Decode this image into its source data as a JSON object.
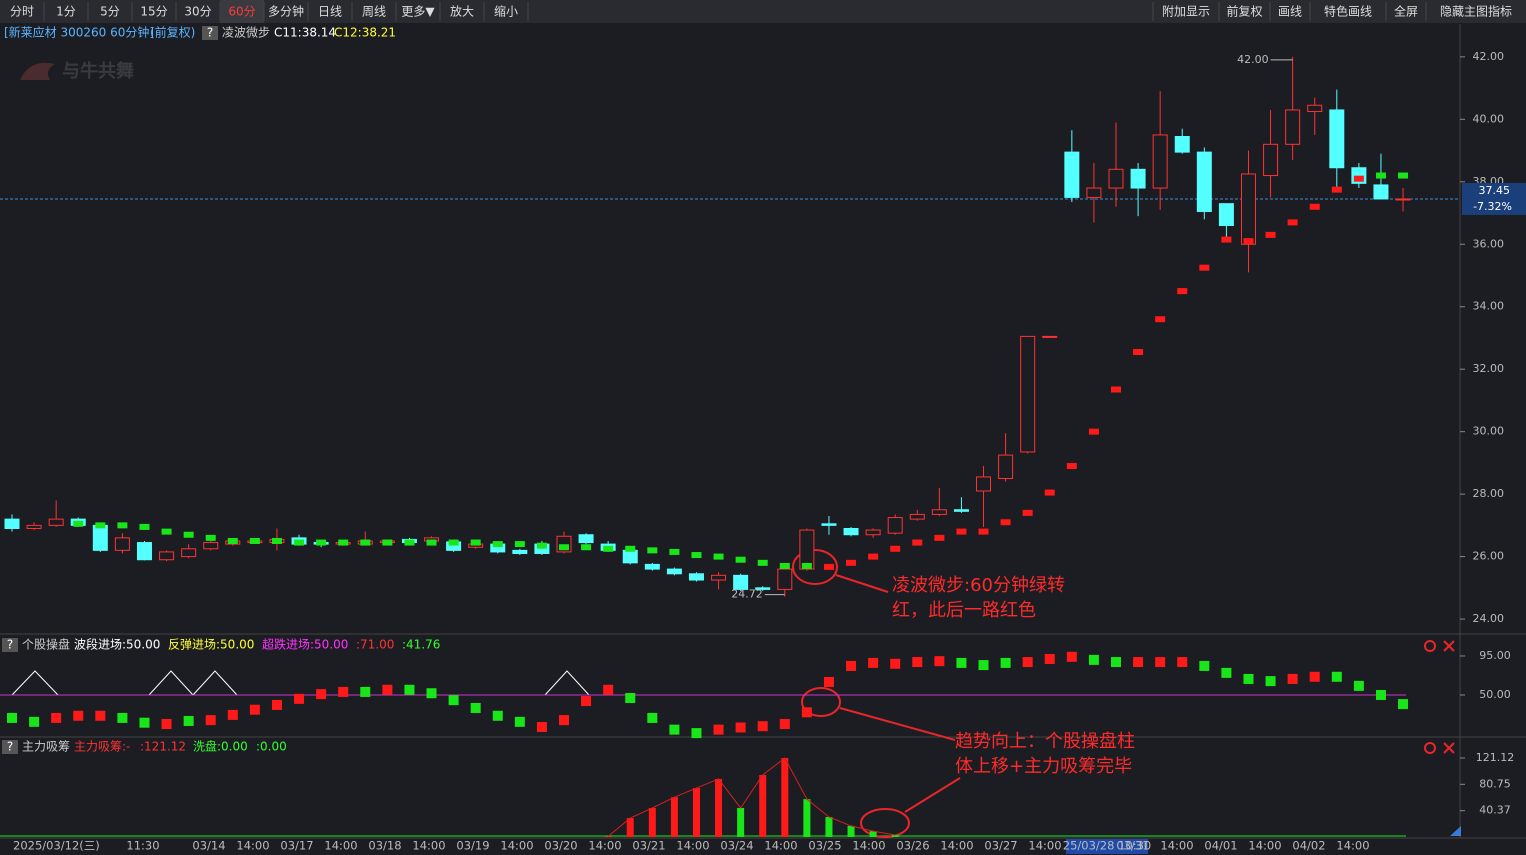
{
  "toolbar": {
    "left": [
      "分时",
      "1分",
      "5分",
      "15分",
      "30分",
      "60分",
      "多分钟",
      "日线",
      "周线",
      "更多▼",
      "放大",
      "缩小"
    ],
    "active": 5,
    "right": [
      "附加显示",
      "前复权",
      "画线",
      "特色画线",
      "全屏",
      "隐藏主图指标"
    ]
  },
  "header": {
    "symbol": "[新莱应材 300260 60分钟]",
    "adjust": "(前复权)",
    "help": "?",
    "indicator": "凌波微步",
    "c1": "C11:38.14",
    "c2": "C12:38.21"
  },
  "logo": "与牛共舞",
  "chart_data": [
    {
      "type": "candlestick",
      "open": [
        27.2,
        26.9,
        27.0,
        27.2,
        27.0,
        26.2,
        26.45,
        25.9,
        26.0,
        26.25,
        26.4,
        26.45,
        26.45,
        26.6,
        26.45,
        26.4,
        26.4,
        26.45,
        26.55,
        26.5,
        26.47,
        26.3,
        26.4,
        26.2,
        26.4,
        26.15,
        26.7,
        26.4,
        26.2,
        25.75,
        25.6,
        25.45,
        25.25,
        25.4,
        25.0,
        24.95,
        25.6,
        27.05,
        26.9,
        26.7,
        26.75,
        27.2,
        27.35,
        27.5,
        28.1,
        28.5,
        29.35,
        33.05,
        38.95,
        37.5,
        37.8,
        38.4,
        37.8,
        39.45,
        38.95,
        37.3,
        36.0,
        38.2,
        39.2,
        40.25,
        40.3,
        38.45,
        37.9,
        37.45
      ],
      "high": [
        27.35,
        27.1,
        27.8,
        27.25,
        27.05,
        26.75,
        26.5,
        26.2,
        26.4,
        26.5,
        26.55,
        26.6,
        26.9,
        26.7,
        26.5,
        26.5,
        26.8,
        26.55,
        26.6,
        26.65,
        26.5,
        26.5,
        26.45,
        26.25,
        26.5,
        26.8,
        26.75,
        26.5,
        26.25,
        25.8,
        25.65,
        25.5,
        25.5,
        25.45,
        25.05,
        25.65,
        26.9,
        27.3,
        26.95,
        26.9,
        27.35,
        27.5,
        28.2,
        27.9,
        28.9,
        29.95,
        33.05,
        33.05,
        39.65,
        38.6,
        39.9,
        38.6,
        40.9,
        39.7,
        39.1,
        37.3,
        39.0,
        40.3,
        42.0,
        40.7,
        40.95,
        38.6,
        38.9,
        37.8
      ],
      "low": [
        26.8,
        26.85,
        26.95,
        26.95,
        26.15,
        26.1,
        25.88,
        25.85,
        25.95,
        26.2,
        26.35,
        26.4,
        26.2,
        26.35,
        26.3,
        26.35,
        26.35,
        26.4,
        26.4,
        26.45,
        26.15,
        26.25,
        26.1,
        26.05,
        26.05,
        26.1,
        26.4,
        26.15,
        25.75,
        25.55,
        25.4,
        25.2,
        24.95,
        24.9,
        24.9,
        24.72,
        25.55,
        26.7,
        26.65,
        26.6,
        26.7,
        27.15,
        27.3,
        27.4,
        26.95,
        28.4,
        29.3,
        33.05,
        37.35,
        36.7,
        37.2,
        36.9,
        37.1,
        38.9,
        36.8,
        36.1,
        35.1,
        37.5,
        38.7,
        39.5,
        37.8,
        37.8,
        37.45,
        37.05
      ],
      "close": [
        26.9,
        27.0,
        27.2,
        27.0,
        26.2,
        26.6,
        25.9,
        26.15,
        26.25,
        26.45,
        26.5,
        26.5,
        26.55,
        26.4,
        26.4,
        26.45,
        26.5,
        26.5,
        26.45,
        26.6,
        26.2,
        26.4,
        26.15,
        26.1,
        26.1,
        26.65,
        26.45,
        26.2,
        25.8,
        25.6,
        25.45,
        25.25,
        25.4,
        24.95,
        24.95,
        25.6,
        26.85,
        27.0,
        26.7,
        26.85,
        27.25,
        27.35,
        27.5,
        27.45,
        28.55,
        29.25,
        33.05,
        33.05,
        37.5,
        37.8,
        38.4,
        37.8,
        39.5,
        38.95,
        37.05,
        36.6,
        38.25,
        39.2,
        40.3,
        40.45,
        38.45,
        37.95,
        37.45,
        37.45
      ],
      "up_color": "#ff3232",
      "down_color": "#54ffff",
      "signal_line": {
        "values": [
          null,
          null,
          null,
          27.05,
          27.0,
          27.0,
          26.95,
          26.8,
          26.7,
          26.6,
          26.5,
          26.5,
          26.5,
          26.45,
          26.45,
          26.45,
          26.45,
          26.45,
          26.45,
          26.45,
          26.45,
          26.45,
          26.4,
          26.4,
          26.35,
          26.3,
          26.3,
          26.25,
          26.25,
          26.2,
          26.15,
          26.05,
          26.0,
          25.9,
          25.8,
          25.7,
          25.7,
          25.67,
          25.8,
          26.0,
          26.25,
          26.45,
          26.6,
          26.8,
          26.8,
          27.1,
          27.4,
          28.05,
          28.9,
          30.0,
          31.35,
          32.55,
          33.6,
          34.5,
          35.25,
          36.15,
          36.1,
          36.3,
          36.7,
          37.2,
          37.75,
          38.1,
          38.2,
          38.2
        ],
        "colors": [
          null,
          null,
          null,
          "#19e619",
          "#19e619",
          "#19e619",
          "#19e619",
          "#19e619",
          "#19e619",
          "#19e619",
          "#19e619",
          "#19e619",
          "#19e619",
          "#19e619",
          "#19e619",
          "#19e619",
          "#19e619",
          "#19e619",
          "#19e619",
          "#19e619",
          "#19e619",
          "#19e619",
          "#19e619",
          "#19e619",
          "#19e619",
          "#19e619",
          "#19e619",
          "#19e619",
          "#19e619",
          "#19e619",
          "#19e619",
          "#19e619",
          "#19e619",
          "#19e619",
          "#19e619",
          "#19e619",
          "#19e619",
          "#ff1a1a",
          "#ff1a1a",
          "#ff1a1a",
          "#ff1a1a",
          "#ff1a1a",
          "#ff1a1a",
          "#ff1a1a",
          "#ff1a1a",
          "#ff1a1a",
          "#ff1a1a",
          "#ff1a1a",
          "#ff1a1a",
          "#ff1a1a",
          "#ff1a1a",
          "#ff1a1a",
          "#ff1a1a",
          "#ff1a1a",
          "#ff1a1a",
          "#ff1a1a",
          "#ff1a1a",
          "#ff1a1a",
          "#ff1a1a",
          "#ff1a1a",
          "#ff1a1a",
          "#ff1a1a",
          "#19e619",
          "#19e619"
        ]
      },
      "ylim": [
        23.65,
        43.02
      ],
      "yticks": [
        {
          "value": 42,
          "label": "42.00"
        },
        {
          "value": 40,
          "label": "40.00"
        },
        {
          "value": 38,
          "label": "38.00"
        },
        {
          "value": 36,
          "label": "36.00"
        },
        {
          "value": 34,
          "label": "34.00"
        },
        {
          "value": 32,
          "label": "32.00"
        },
        {
          "value": 30,
          "label": "30.00"
        },
        {
          "value": 28,
          "label": "28.00"
        },
        {
          "value": 26,
          "label": "26.00"
        },
        {
          "value": 24,
          "label": "24.00"
        }
      ],
      "last_price": {
        "value": 37.45,
        "label": "37.45"
      },
      "change_label": "-7.32%",
      "high_mark": {
        "value": 42,
        "label": "42.00"
      },
      "low_mark": {
        "value": 24.72,
        "label": "24.72"
      },
      "annotation": [
        "凌波微步:60分钟绿转",
        "红，此后一路红色"
      ]
    },
    {
      "type": "bar",
      "help": "?",
      "name": "个股操盘",
      "legend": [
        "波段进场:50.00",
        "反弹进场:50.00",
        "超跌进场:50.00",
        ":71.00",
        ":41.76"
      ],
      "legend_colors": [
        "#ffffff",
        "#ffff33",
        "#ff33ff",
        "#ff3232",
        "#33ff33"
      ],
      "reference_line": 50,
      "values": [
        23.5,
        19,
        23.5,
        26,
        26,
        23.5,
        18,
        16.5,
        20,
        21,
        27,
        33,
        38.5,
        45.5,
        51,
        53.5,
        53.5,
        56,
        56,
        52,
        44,
        35,
        26,
        19,
        13,
        21,
        43,
        56,
        46.5,
        23.5,
        10,
        6,
        10,
        12.5,
        14,
        16.5,
        30,
        65,
        83.5,
        87,
        86,
        88,
        89,
        87,
        84.5,
        87,
        88,
        91.5,
        94,
        90.5,
        88,
        88,
        88,
        88,
        83.5,
        75.5,
        68.5,
        66,
        68.5,
        71,
        71,
        60.5,
        50,
        39.5
      ],
      "colors": [
        "#19e619",
        "#19e619",
        "#ff1a1a",
        "#ff1a1a",
        "#ff1a1a",
        "#19e619",
        "#19e619",
        "#ff1a1a",
        "#19e619",
        "#ff1a1a",
        "#ff1a1a",
        "#ff1a1a",
        "#ff1a1a",
        "#ff1a1a",
        "#ff1a1a",
        "#ff1a1a",
        "#19e619",
        "#ff1a1a",
        "#19e619",
        "#19e619",
        "#19e619",
        "#19e619",
        "#19e619",
        "#19e619",
        "#ff1a1a",
        "#ff1a1a",
        "#ff1a1a",
        "#ff1a1a",
        "#19e619",
        "#19e619",
        "#19e619",
        "#19e619",
        "#ff1a1a",
        "#ff1a1a",
        "#ff1a1a",
        "#ff1a1a",
        "#ff1a1a",
        "#ff1a1a",
        "#ff1a1a",
        "#ff1a1a",
        "#ff1a1a",
        "#ff1a1a",
        "#ff1a1a",
        "#19e619",
        "#19e619",
        "#19e619",
        "#ff1a1a",
        "#ff1a1a",
        "#ff1a1a",
        "#19e619",
        "#19e619",
        "#ff1a1a",
        "#ff1a1a",
        "#ff1a1a",
        "#19e619",
        "#19e619",
        "#19e619",
        "#19e619",
        "#ff1a1a",
        "#ff1a1a",
        "#19e619",
        "#19e619",
        "#19e619",
        "#19e619"
      ],
      "ylim": [
        1.5,
        101.9
      ],
      "yticks": [
        {
          "value": 95,
          "label": "95.00"
        },
        {
          "value": 50,
          "label": "50.00"
        }
      ],
      "annotation": [
        "趋势向上：个股操盘柱",
        "体上移+主力吸筹完毕"
      ]
    },
    {
      "type": "bar",
      "help": "?",
      "name": "主力吸筹",
      "legend": [
        "主力吸筹:-",
        ":121.12",
        "洗盘:0.00",
        ":0.00"
      ],
      "legend_colors": [
        "#ff3232",
        "#ff3232",
        "#33ff33",
        "#33ff33"
      ],
      "values": [
        null,
        null,
        null,
        null,
        null,
        null,
        null,
        null,
        null,
        null,
        null,
        null,
        null,
        null,
        null,
        null,
        null,
        null,
        null,
        null,
        null,
        null,
        null,
        null,
        null,
        null,
        null,
        1,
        29,
        44.5,
        61,
        75,
        89,
        44.5,
        95,
        121.12,
        58,
        30.7,
        17,
        9,
        3,
        null,
        null,
        null,
        null,
        null,
        null,
        null,
        null,
        null,
        null,
        null,
        null,
        null,
        null,
        null,
        null,
        null,
        null,
        null,
        null,
        null,
        null,
        null
      ],
      "colors": [
        null,
        null,
        null,
        null,
        null,
        null,
        null,
        null,
        null,
        null,
        null,
        null,
        null,
        null,
        null,
        null,
        null,
        null,
        null,
        null,
        null,
        null,
        null,
        null,
        null,
        null,
        null,
        "#ff1a1a",
        "#ff1a1a",
        "#ff1a1a",
        "#ff1a1a",
        "#ff1a1a",
        "#ff1a1a",
        "#19e619",
        "#ff1a1a",
        "#ff1a1a",
        "#19e619",
        "#19e619",
        "#19e619",
        "#19e619",
        "#19e619",
        null,
        null,
        null,
        null,
        null,
        null,
        null,
        null,
        null,
        null,
        null,
        null,
        null,
        null,
        null,
        null,
        null,
        null,
        null,
        null,
        null,
        null,
        null
      ],
      "ylim": [
        0,
        125.7
      ],
      "yticks": [
        121.12,
        80.75,
        40.37
      ]
    }
  ],
  "time_axis": {
    "labels": [
      "2025/03/12(三)",
      "11:30",
      "03/14",
      "14:00",
      "03/17",
      "14:00",
      "03/18",
      "14:00",
      "03/19",
      "14:00",
      "03/20",
      "14:00",
      "03/21",
      "14:00",
      "03/24",
      "14:00",
      "03/25",
      "14:00",
      "03/26",
      "14:00",
      "03/27",
      "14:00",
      "25/03/28 10:30",
      "03/31",
      "14:00",
      "04/01",
      "14:00",
      "04/02",
      "14:00"
    ],
    "highlight": 22
  }
}
